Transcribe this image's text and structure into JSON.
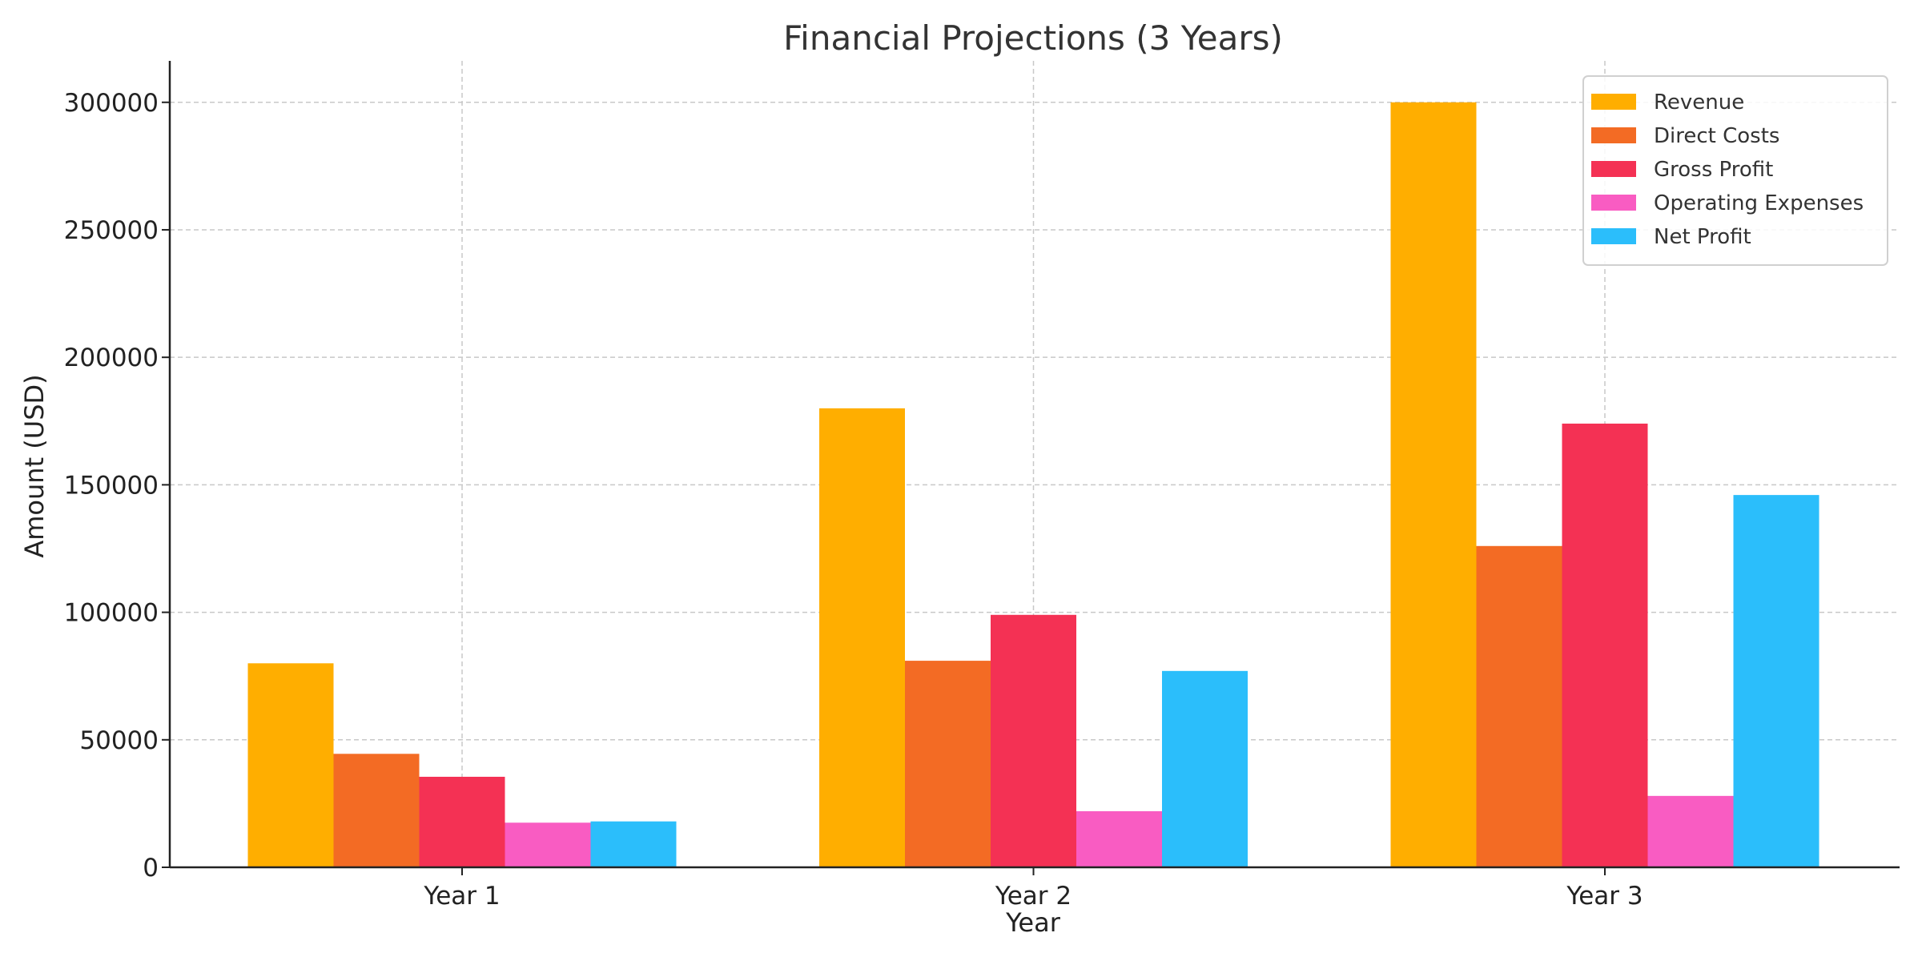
{
  "chart_data": {
    "type": "bar",
    "title": "Financial Projections (3 Years)",
    "xlabel": "Year",
    "ylabel": "Amount (USD)",
    "categories": [
      "Year 1",
      "Year 2",
      "Year 3"
    ],
    "ylim": [
      0,
      315000
    ],
    "yticks": [
      0,
      50000,
      100000,
      150000,
      200000,
      250000,
      300000
    ],
    "grid": true,
    "legend_position": "top-right",
    "series": [
      {
        "name": "Revenue",
        "color": "#FFAE00",
        "values": [
          80000,
          180000,
          300000
        ]
      },
      {
        "name": "Direct Costs",
        "color": "#F36B24",
        "values": [
          44500,
          81000,
          126000
        ]
      },
      {
        "name": "Gross Profit",
        "color": "#F43154",
        "values": [
          35500,
          99000,
          174000
        ]
      },
      {
        "name": "Operating Expenses",
        "color": "#F95CC2",
        "values": [
          17500,
          22000,
          28000
        ]
      },
      {
        "name": "Net Profit",
        "color": "#2BBEFB",
        "values": [
          18000,
          77000,
          146000
        ]
      }
    ]
  }
}
